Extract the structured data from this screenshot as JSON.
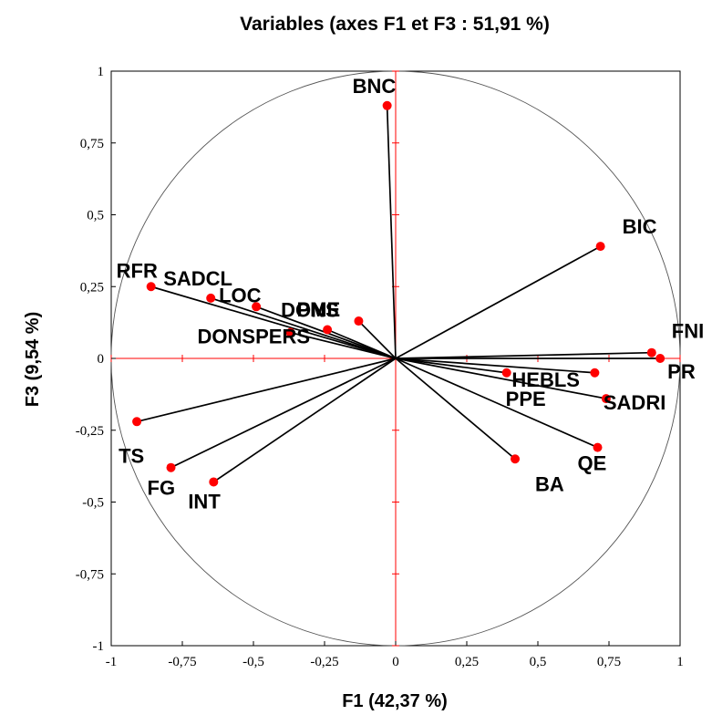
{
  "chart_data": {
    "type": "scatter",
    "title": "Variables (axes F1 et F3 : 51,91 %)",
    "xlabel": "F1 (42,37 %)",
    "ylabel": "F3 (9,54 %)",
    "xlim": [
      -1,
      1
    ],
    "ylim": [
      -1,
      1
    ],
    "x_ticks": [
      "-1",
      "-0,75",
      "-0,5",
      "-0,25",
      "0",
      "0,25",
      "0,5",
      "0,75",
      "1"
    ],
    "y_ticks": [
      "-1",
      "-0,75",
      "-0,5",
      "-0,25",
      "0",
      "0,25",
      "0,5",
      "0,75",
      "1"
    ],
    "unit_circle": true,
    "point_color": "#ff0000",
    "vector_color": "#000000",
    "axis_color": "#ff0000",
    "points": [
      {
        "label": "BNC",
        "x": -0.03,
        "y": 0.88
      },
      {
        "label": "BIC",
        "x": 0.72,
        "y": 0.39
      },
      {
        "label": "FNI",
        "x": 0.9,
        "y": 0.02
      },
      {
        "label": "PR",
        "x": 0.93,
        "y": 0.0
      },
      {
        "label": "SADRI",
        "x": 0.74,
        "y": -0.14
      },
      {
        "label": "HEBLS",
        "x": 0.7,
        "y": -0.05
      },
      {
        "label": "PPE",
        "x": 0.39,
        "y": -0.05
      },
      {
        "label": "QE",
        "x": 0.71,
        "y": -0.31
      },
      {
        "label": "BA",
        "x": 0.42,
        "y": -0.35
      },
      {
        "label": "RFR",
        "x": -0.86,
        "y": 0.25
      },
      {
        "label": "SADCL",
        "x": -0.65,
        "y": 0.21
      },
      {
        "label": "LOC",
        "x": -0.49,
        "y": 0.18
      },
      {
        "label": "DONSPERS",
        "x": -0.37,
        "y": 0.09
      },
      {
        "label": "DONS",
        "x": -0.24,
        "y": 0.1
      },
      {
        "label": "PME",
        "x": -0.13,
        "y": 0.13
      },
      {
        "label": "TS",
        "x": -0.91,
        "y": -0.22
      },
      {
        "label": "FG",
        "x": -0.79,
        "y": -0.38
      },
      {
        "label": "INT",
        "x": -0.64,
        "y": -0.43
      }
    ]
  }
}
